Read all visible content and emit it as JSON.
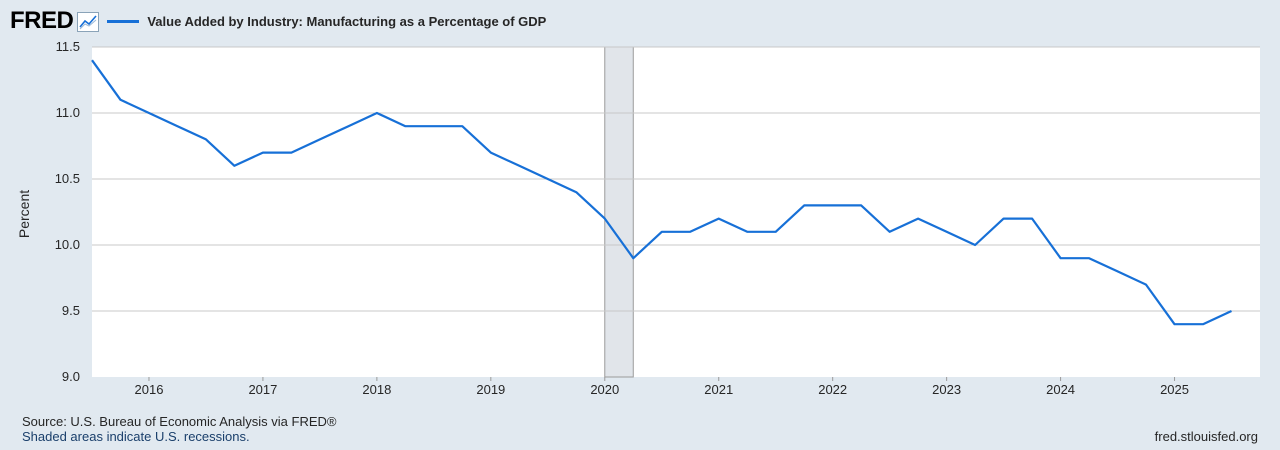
{
  "header": {
    "logo": "FRED",
    "series_title": "Value Added by Industry: Manufacturing as a Percentage of GDP"
  },
  "footer": {
    "source": "Source: U.S. Bureau of Economic Analysis via FRED®",
    "shaded_note": "Shaded areas indicate U.S. recessions.",
    "site": "fred.stlouisfed.org"
  },
  "colors": {
    "line": "#1770d7",
    "grid": "#c8c8c8",
    "recession": "#e1e5ea",
    "background": "#e1e9f0"
  },
  "chart_data": {
    "type": "line",
    "title": "Value Added by Industry: Manufacturing as a Percentage of GDP",
    "xlabel": "",
    "ylabel": "Percent",
    "ylim": [
      9.0,
      11.5
    ],
    "xlim": [
      2015.5,
      2025.75
    ],
    "yticks": [
      "9.0",
      "9.5",
      "10.0",
      "10.5",
      "11.0",
      "11.5"
    ],
    "xticks": [
      {
        "label": "2016",
        "x": 2016.0
      },
      {
        "label": "2017",
        "x": 2017.0
      },
      {
        "label": "2018",
        "x": 2018.0
      },
      {
        "label": "2019",
        "x": 2019.0
      },
      {
        "label": "2020",
        "x": 2020.0
      },
      {
        "label": "2021",
        "x": 2021.0
      },
      {
        "label": "2022",
        "x": 2022.0
      },
      {
        "label": "2023",
        "x": 2023.0
      },
      {
        "label": "2024",
        "x": 2024.0
      },
      {
        "label": "2025",
        "x": 2025.0
      }
    ],
    "recessions": [
      {
        "start": 2020.0,
        "end": 2020.25
      }
    ],
    "series": [
      {
        "name": "Value Added by Industry: Manufacturing as a Percentage of GDP",
        "x": [
          2015.5,
          2015.75,
          2016.0,
          2016.25,
          2016.5,
          2016.75,
          2017.0,
          2017.25,
          2017.5,
          2017.75,
          2018.0,
          2018.25,
          2018.5,
          2018.75,
          2019.0,
          2019.25,
          2019.5,
          2019.75,
          2020.0,
          2020.25,
          2020.5,
          2020.75,
          2021.0,
          2021.25,
          2021.5,
          2021.75,
          2022.0,
          2022.25,
          2022.5,
          2022.75,
          2023.0,
          2023.25,
          2023.5,
          2023.75,
          2024.0,
          2024.25,
          2024.5,
          2024.75,
          2025.0,
          2025.25,
          2025.5
        ],
        "values": [
          11.4,
          11.1,
          11.0,
          10.9,
          10.8,
          10.6,
          10.7,
          10.7,
          10.8,
          10.9,
          11.0,
          10.9,
          10.9,
          10.9,
          10.7,
          10.6,
          10.5,
          10.4,
          10.2,
          9.9,
          10.1,
          10.1,
          10.2,
          10.1,
          10.1,
          10.3,
          10.3,
          10.3,
          10.1,
          10.2,
          10.1,
          10.0,
          10.2,
          10.2,
          9.9,
          9.9,
          9.8,
          9.7,
          9.4,
          9.4,
          9.5
        ]
      }
    ]
  }
}
